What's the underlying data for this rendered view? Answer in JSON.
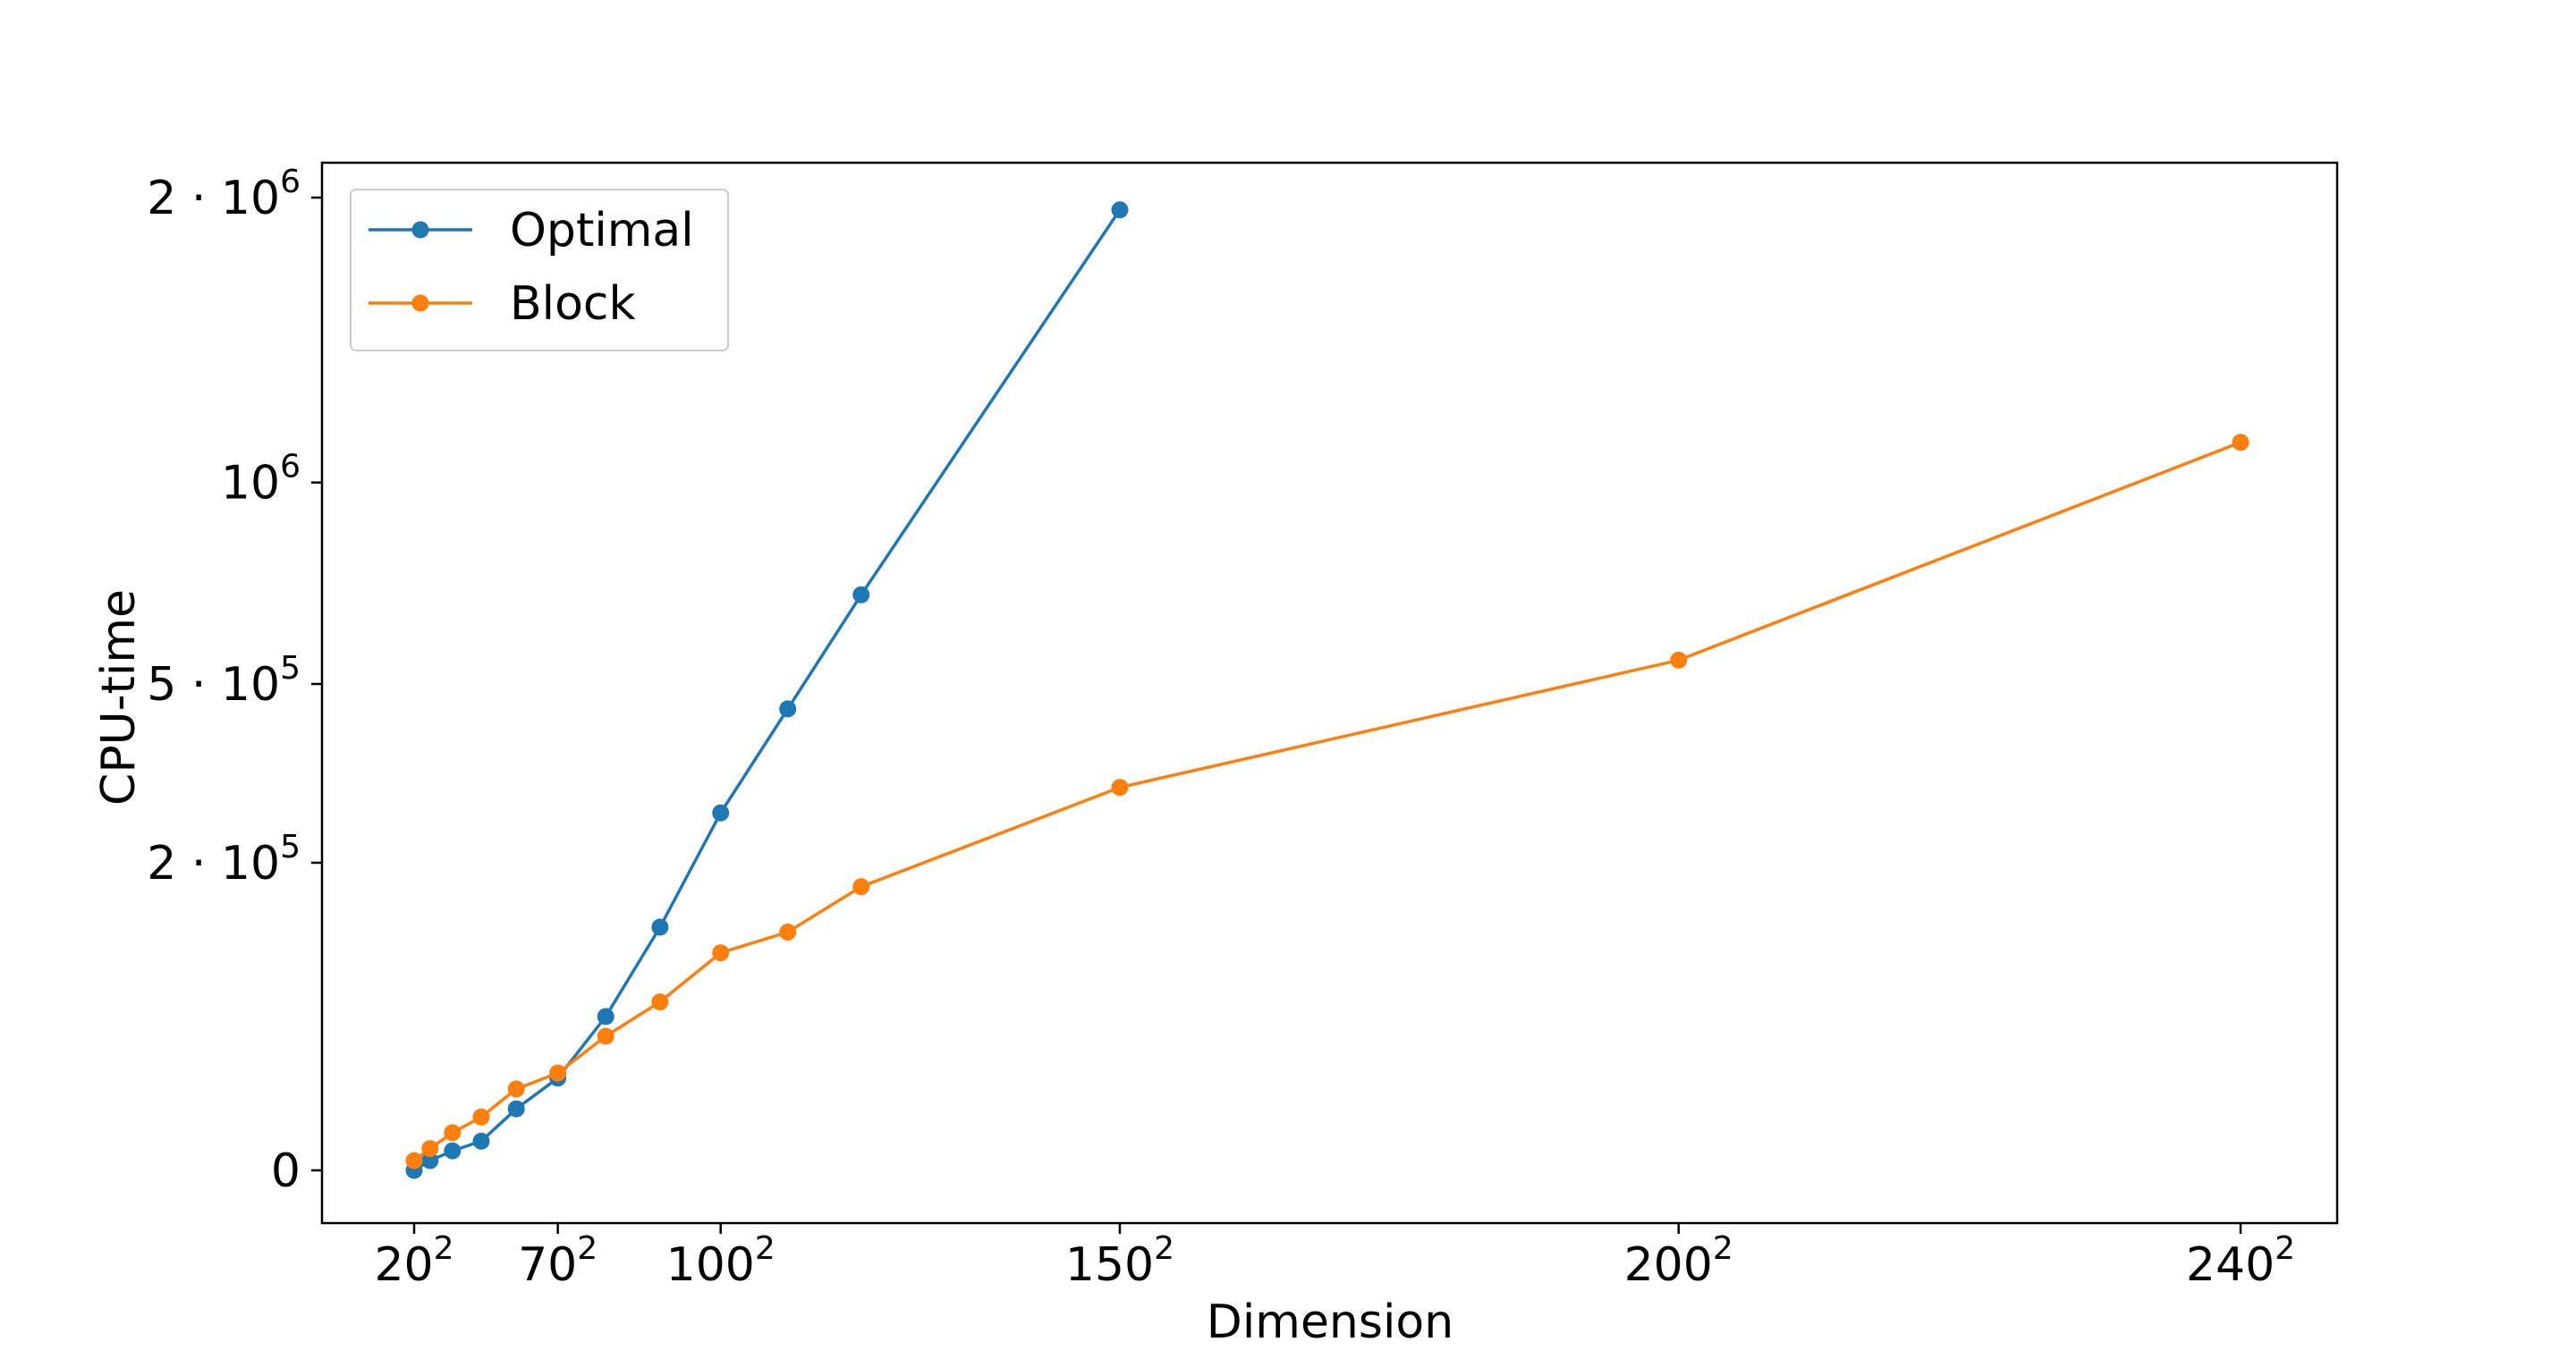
{
  "chart_data": {
    "type": "line",
    "xlabel": "Dimension",
    "ylabel": "CPU-time",
    "x_scale": "squared",
    "x_base_values": [
      20,
      70,
      100,
      150,
      200,
      240
    ],
    "x_tick_labels": [
      {
        "base": "20",
        "exp": "2"
      },
      {
        "base": "70",
        "exp": "2"
      },
      {
        "base": "100",
        "exp": "2"
      },
      {
        "base": "150",
        "exp": "2"
      },
      {
        "base": "200",
        "exp": "2"
      },
      {
        "base": "240",
        "exp": "2"
      }
    ],
    "y_scale": "sqrt",
    "y_tick_values": [
      0,
      200000,
      500000,
      1000000,
      2000000
    ],
    "y_tick_labels": [
      {
        "pre": "0",
        "exp": ""
      },
      {
        "pre": "2 · 10",
        "exp": "5"
      },
      {
        "pre": "5 · 10",
        "exp": "5"
      },
      {
        "pre": "10",
        "exp": "6"
      },
      {
        "pre": "2 · 10",
        "exp": "6"
      }
    ],
    "legend_position": "top-left",
    "grid": false,
    "series": [
      {
        "name": "Optimal",
        "color": "#1f77b4",
        "x": [
          20,
          30,
          40,
          50,
          60,
          70,
          80,
          90,
          100,
          110,
          120,
          150
        ],
        "y": [
          0,
          200,
          800,
          1800,
          8000,
          18000,
          50000,
          125000,
          270000,
          450000,
          700000,
          1950000
        ]
      },
      {
        "name": "Block",
        "color": "#ff7f0e",
        "x": [
          20,
          30,
          40,
          50,
          60,
          70,
          80,
          90,
          100,
          110,
          120,
          150,
          200,
          240
        ],
        "y": [
          200,
          1000,
          3000,
          6000,
          14000,
          20000,
          38000,
          60000,
          100000,
          120000,
          170000,
          310000,
          550000,
          1120000
        ]
      }
    ]
  }
}
